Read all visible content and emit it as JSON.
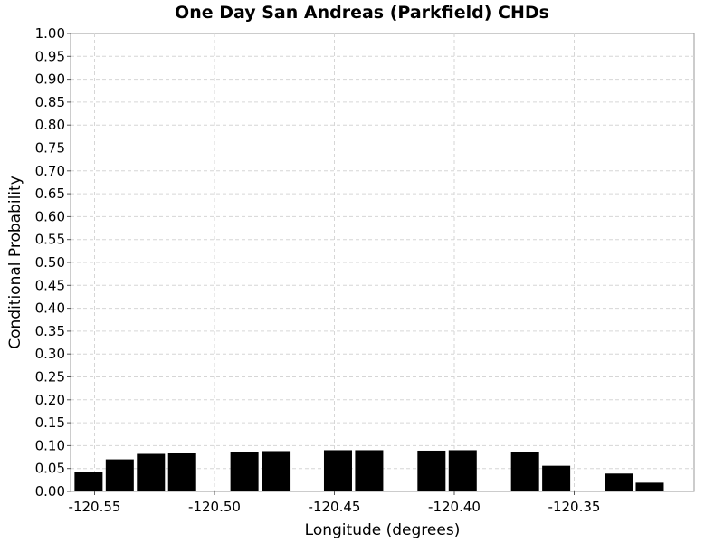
{
  "chart_data": {
    "type": "bar",
    "title": "One Day San Andreas (Parkfield) CHDs",
    "xlabel": "Longitude (degrees)",
    "ylabel": "Conditional Probability",
    "xlim": [
      -120.56,
      -120.3
    ],
    "ylim": [
      0,
      1.0
    ],
    "grid": true,
    "bar_color": "#000000",
    "x_ticks": [
      "-120.55",
      "-120.50",
      "-120.45",
      "-120.40",
      "-120.35"
    ],
    "y_ticks": [
      "0.00",
      "0.05",
      "0.10",
      "0.15",
      "0.20",
      "0.25",
      "0.30",
      "0.35",
      "0.40",
      "0.45",
      "0.50",
      "0.55",
      "0.60",
      "0.65",
      "0.70",
      "0.75",
      "0.80",
      "0.85",
      "0.90",
      "0.95",
      "1.00"
    ],
    "series": [
      {
        "x": [
          -120.5525,
          -120.5395,
          -120.5265,
          -120.5135,
          -120.4875,
          -120.4745,
          -120.4485,
          -120.4355,
          -120.4095,
          -120.3965,
          -120.3705,
          -120.3575,
          -120.3315,
          -120.3185
        ],
        "values": [
          0.042,
          0.07,
          0.082,
          0.083,
          0.086,
          0.088,
          0.09,
          0.09,
          0.089,
          0.09,
          0.086,
          0.056,
          0.039,
          0.019
        ]
      }
    ]
  }
}
